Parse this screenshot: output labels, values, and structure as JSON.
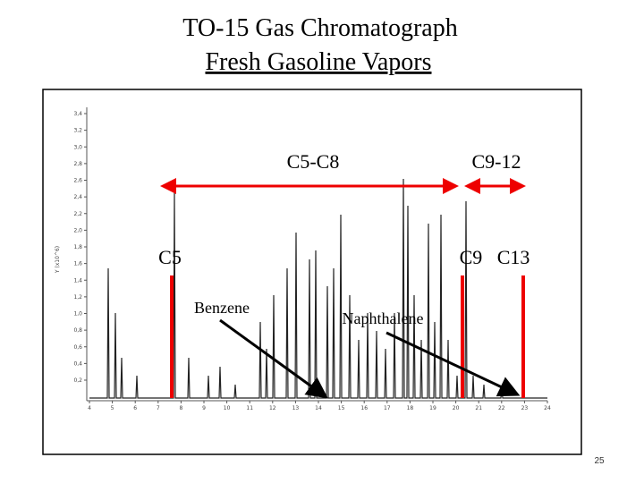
{
  "slide": {
    "title": "TO-15 Gas Chromatograph",
    "subtitle": "Fresh Gasoline Vapors",
    "page_number": "25"
  },
  "annotations": {
    "range_c5_c8": "C5-C8",
    "range_c9_c12": "C9-12",
    "c5": "C5",
    "c9_c13": "C9   C13",
    "benzene": "Benzene",
    "naphthalene": "Naphthalene"
  },
  "chromatogram": {
    "ylabel": "Y (x10^6)",
    "xticks": [
      4,
      5,
      6,
      7,
      8,
      9,
      10,
      11,
      12,
      13,
      14,
      15,
      16,
      17,
      18,
      19,
      20,
      21,
      22,
      23,
      24
    ],
    "yticks": [
      "3,4",
      "3,2",
      "3,0",
      "2,8",
      "2,6",
      "2,4",
      "2,2",
      "2,0",
      "1,8",
      "1,6",
      "1,4",
      "1,2",
      "1,0",
      "0,8",
      "0,6",
      "0,4",
      "0,2"
    ]
  }
}
